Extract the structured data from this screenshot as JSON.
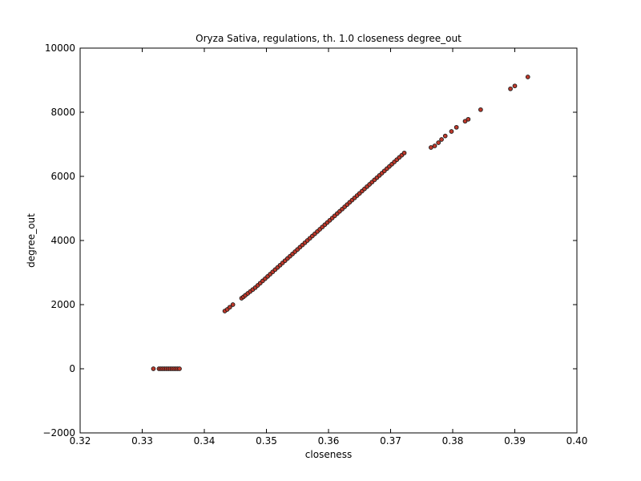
{
  "chart_data": {
    "type": "scatter",
    "title": "Oryza Sativa, regulations, th. 1.0 closeness degree_out",
    "xlabel": "closeness",
    "ylabel": "degree_out",
    "xlim": [
      0.32,
      0.4
    ],
    "ylim": [
      -2000,
      10000
    ],
    "xticks": [
      0.32,
      0.33,
      0.34,
      0.35,
      0.36,
      0.37,
      0.38,
      0.39,
      0.4
    ],
    "yticks": [
      -2000,
      0,
      2000,
      4000,
      6000,
      8000,
      10000
    ],
    "xtick_labels": [
      "0.32",
      "0.33",
      "0.34",
      "0.35",
      "0.36",
      "0.37",
      "0.38",
      "0.39",
      "0.40"
    ],
    "ytick_labels": [
      "−2000",
      "0",
      "2000",
      "4000",
      "6000",
      "8000",
      "10000"
    ],
    "grid": false,
    "marker_fill": "#c0392b",
    "marker_edge": "#1a1a1a",
    "points": [
      [
        0.3318,
        0
      ],
      [
        0.3327,
        0
      ],
      [
        0.333,
        0
      ],
      [
        0.3333,
        0
      ],
      [
        0.3336,
        0
      ],
      [
        0.3339,
        0
      ],
      [
        0.3342,
        0
      ],
      [
        0.3345,
        0
      ],
      [
        0.3348,
        0
      ],
      [
        0.3351,
        0
      ],
      [
        0.3354,
        0
      ],
      [
        0.3357,
        0
      ],
      [
        0.336,
        0
      ],
      [
        0.3433,
        1800
      ],
      [
        0.3437,
        1850
      ],
      [
        0.3441,
        1920
      ],
      [
        0.3446,
        2000
      ],
      [
        0.346,
        2200
      ],
      [
        0.3463,
        2240
      ],
      [
        0.3466,
        2290
      ],
      [
        0.347,
        2350
      ],
      [
        0.3474,
        2410
      ],
      [
        0.3478,
        2470
      ],
      [
        0.3482,
        2530
      ],
      [
        0.3486,
        2600
      ],
      [
        0.349,
        2670
      ],
      [
        0.3494,
        2740
      ],
      [
        0.3498,
        2810
      ],
      [
        0.3502,
        2880
      ],
      [
        0.3506,
        2950
      ],
      [
        0.351,
        3020
      ],
      [
        0.3514,
        3090
      ],
      [
        0.3518,
        3160
      ],
      [
        0.3522,
        3230
      ],
      [
        0.3526,
        3300
      ],
      [
        0.353,
        3370
      ],
      [
        0.3534,
        3440
      ],
      [
        0.3538,
        3510
      ],
      [
        0.3542,
        3580
      ],
      [
        0.3546,
        3650
      ],
      [
        0.355,
        3720
      ],
      [
        0.3554,
        3790
      ],
      [
        0.3558,
        3860
      ],
      [
        0.3562,
        3930
      ],
      [
        0.3566,
        4000
      ],
      [
        0.357,
        4070
      ],
      [
        0.3574,
        4140
      ],
      [
        0.3578,
        4210
      ],
      [
        0.3582,
        4280
      ],
      [
        0.3586,
        4350
      ],
      [
        0.359,
        4420
      ],
      [
        0.3594,
        4490
      ],
      [
        0.3598,
        4560
      ],
      [
        0.3602,
        4630
      ],
      [
        0.3606,
        4700
      ],
      [
        0.361,
        4770
      ],
      [
        0.3614,
        4840
      ],
      [
        0.3618,
        4910
      ],
      [
        0.3622,
        4980
      ],
      [
        0.3626,
        5050
      ],
      [
        0.363,
        5120
      ],
      [
        0.3634,
        5190
      ],
      [
        0.3638,
        5260
      ],
      [
        0.3642,
        5330
      ],
      [
        0.3646,
        5400
      ],
      [
        0.365,
        5470
      ],
      [
        0.3654,
        5540
      ],
      [
        0.3658,
        5610
      ],
      [
        0.3662,
        5680
      ],
      [
        0.3666,
        5750
      ],
      [
        0.367,
        5820
      ],
      [
        0.3674,
        5890
      ],
      [
        0.3678,
        5960
      ],
      [
        0.3682,
        6030
      ],
      [
        0.3686,
        6100
      ],
      [
        0.369,
        6170
      ],
      [
        0.3694,
        6240
      ],
      [
        0.3698,
        6310
      ],
      [
        0.3702,
        6380
      ],
      [
        0.3706,
        6450
      ],
      [
        0.371,
        6520
      ],
      [
        0.3714,
        6590
      ],
      [
        0.3718,
        6660
      ],
      [
        0.3722,
        6730
      ],
      [
        0.3765,
        6900
      ],
      [
        0.3771,
        6950
      ],
      [
        0.3777,
        7050
      ],
      [
        0.3782,
        7150
      ],
      [
        0.3788,
        7260
      ],
      [
        0.3798,
        7400
      ],
      [
        0.3806,
        7530
      ],
      [
        0.382,
        7720
      ],
      [
        0.3825,
        7780
      ],
      [
        0.3845,
        8080
      ],
      [
        0.3893,
        8730
      ],
      [
        0.39,
        8820
      ],
      [
        0.3921,
        9100
      ]
    ]
  }
}
